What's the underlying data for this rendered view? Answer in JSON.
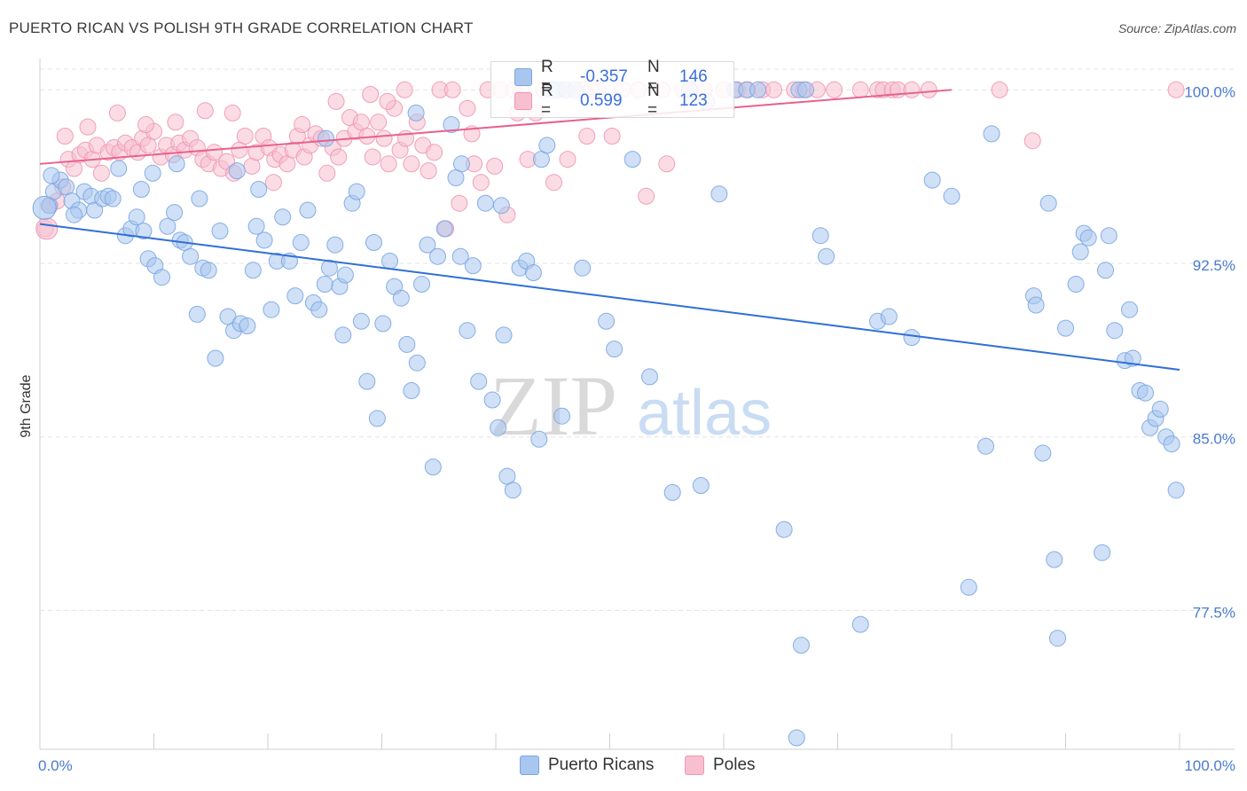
{
  "header": {
    "title": "PUERTO RICAN VS POLISH 9TH GRADE CORRELATION CHART",
    "source": "Source: ZipAtlas.com"
  },
  "watermark": {
    "zip": "ZIP",
    "atlas": "atlas"
  },
  "colors": {
    "blue_fill": "#a9c6ef",
    "blue_stroke": "#7aa6e3",
    "blue_line": "#2f6fd6",
    "pink_fill": "#f7bfd0",
    "pink_stroke": "#f096b3",
    "pink_line": "#e8618d",
    "tick_text": "#4a7bd0",
    "grid": "#e3e3e3"
  },
  "legend": {
    "rows": [
      {
        "series": "Puerto Ricans",
        "r_label": "R =",
        "r_value": "-0.357",
        "n_label": "N =",
        "n_value": "146"
      },
      {
        "series": "Poles",
        "r_label": "R =",
        "r_value": "0.599",
        "n_label": "N =",
        "n_value": "123"
      }
    ]
  },
  "bottom_legend": [
    {
      "label": "Puerto Ricans"
    },
    {
      "label": "Poles"
    }
  ],
  "chart_data": {
    "type": "scatter",
    "title": "PUERTO RICAN VS POLISH 9TH GRADE CORRELATION CHART",
    "xlabel": "",
    "ylabel": "9th Grade",
    "xlim": [
      0,
      100
    ],
    "ylim": [
      71.5,
      101.2
    ],
    "x_tick_labels": [
      "0.0%",
      "100.0%"
    ],
    "y_ticks": [
      {
        "value": 100.0,
        "label": "100.0%"
      },
      {
        "value": 92.5,
        "label": "92.5%"
      },
      {
        "value": 85.0,
        "label": "85.0%"
      },
      {
        "value": 77.5,
        "label": "77.5%"
      }
    ],
    "grid": true,
    "series": [
      {
        "name": "Puerto Ricans",
        "r": -0.357,
        "n": 146,
        "trend": {
          "x": [
            0,
            100
          ],
          "y": [
            94.2,
            87.9
          ]
        },
        "points": [
          [
            0.8,
            95.0
          ],
          [
            1.2,
            95.6
          ],
          [
            1.8,
            96.1
          ],
          [
            2.3,
            95.8
          ],
          [
            2.8,
            95.2
          ],
          [
            3.4,
            94.8
          ],
          [
            3.9,
            95.6
          ],
          [
            4.5,
            95.4
          ],
          [
            4.8,
            94.8
          ],
          [
            5.5,
            95.3
          ],
          [
            6.0,
            95.4
          ],
          [
            6.4,
            95.3
          ],
          [
            7.5,
            93.7
          ],
          [
            8.0,
            94.0
          ],
          [
            8.5,
            94.5
          ],
          [
            9.1,
            93.9
          ],
          [
            9.5,
            92.7
          ],
          [
            10.1,
            92.4
          ],
          [
            10.7,
            91.9
          ],
          [
            11.2,
            94.1
          ],
          [
            11.8,
            94.7
          ],
          [
            12.3,
            93.5
          ],
          [
            12.7,
            93.4
          ],
          [
            13.2,
            92.8
          ],
          [
            13.8,
            90.3
          ],
          [
            14.3,
            92.3
          ],
          [
            14.8,
            92.2
          ],
          [
            15.4,
            88.4
          ],
          [
            15.8,
            93.9
          ],
          [
            16.5,
            90.2
          ],
          [
            17.0,
            89.6
          ],
          [
            17.6,
            89.9
          ],
          [
            18.2,
            89.8
          ],
          [
            18.7,
            92.2
          ],
          [
            19.2,
            95.7
          ],
          [
            19.7,
            93.5
          ],
          [
            20.3,
            90.5
          ],
          [
            20.8,
            92.6
          ],
          [
            21.3,
            94.5
          ],
          [
            21.9,
            92.6
          ],
          [
            22.4,
            91.1
          ],
          [
            22.9,
            93.4
          ],
          [
            23.5,
            94.8
          ],
          [
            24.0,
            90.8
          ],
          [
            24.5,
            90.5
          ],
          [
            25.0,
            91.6
          ],
          [
            25.4,
            92.3
          ],
          [
            25.9,
            93.3
          ],
          [
            26.3,
            91.5
          ],
          [
            26.8,
            92.0
          ],
          [
            27.4,
            95.1
          ],
          [
            27.8,
            95.6
          ],
          [
            28.2,
            90.0
          ],
          [
            28.7,
            87.4
          ],
          [
            29.3,
            93.4
          ],
          [
            29.6,
            85.8
          ],
          [
            30.1,
            89.9
          ],
          [
            30.7,
            92.6
          ],
          [
            31.1,
            91.5
          ],
          [
            31.7,
            91.0
          ],
          [
            32.2,
            89.0
          ],
          [
            32.6,
            87.0
          ],
          [
            33.1,
            88.2
          ],
          [
            33.5,
            91.6
          ],
          [
            34.0,
            93.3
          ],
          [
            34.5,
            83.7
          ],
          [
            34.9,
            92.8
          ],
          [
            35.5,
            94.0
          ],
          [
            36.1,
            98.5
          ],
          [
            36.9,
            92.8
          ],
          [
            37.5,
            89.6
          ],
          [
            38.0,
            92.4
          ],
          [
            38.5,
            87.4
          ],
          [
            39.1,
            95.1
          ],
          [
            39.7,
            86.6
          ],
          [
            40.2,
            85.4
          ],
          [
            40.7,
            89.4
          ],
          [
            41.0,
            83.3
          ],
          [
            41.5,
            82.7
          ],
          [
            42.1,
            92.3
          ],
          [
            42.7,
            92.6
          ],
          [
            43.3,
            92.1
          ],
          [
            44.0,
            97.0
          ],
          [
            44.5,
            97.6
          ],
          [
            45.0,
            100.0
          ],
          [
            45.4,
            100.0
          ],
          [
            46.2,
            100.0
          ],
          [
            47.0,
            100.0
          ],
          [
            49.7,
            90.0
          ],
          [
            55.5,
            82.6
          ],
          [
            58.0,
            82.9
          ],
          [
            59.6,
            95.5
          ],
          [
            61.0,
            100.0
          ],
          [
            62.0,
            100.0
          ],
          [
            65.3,
            81.0
          ],
          [
            66.6,
            100.0
          ],
          [
            66.8,
            76.0
          ],
          [
            67.2,
            100.0
          ],
          [
            68.5,
            93.7
          ],
          [
            69.0,
            92.8
          ],
          [
            72.0,
            76.9
          ],
          [
            73.5,
            90.0
          ],
          [
            74.5,
            90.2
          ],
          [
            76.5,
            89.3
          ],
          [
            78.3,
            96.1
          ],
          [
            80.0,
            95.4
          ],
          [
            81.5,
            78.5
          ],
          [
            83.0,
            84.6
          ],
          [
            83.5,
            98.1
          ],
          [
            87.2,
            91.1
          ],
          [
            87.4,
            90.7
          ],
          [
            88.0,
            84.3
          ],
          [
            88.5,
            95.1
          ],
          [
            89.0,
            79.7
          ],
          [
            89.3,
            76.3
          ],
          [
            90.0,
            89.7
          ],
          [
            90.9,
            91.6
          ],
          [
            91.3,
            93.0
          ],
          [
            91.6,
            93.8
          ],
          [
            92.0,
            93.6
          ],
          [
            93.2,
            80.0
          ],
          [
            93.5,
            92.2
          ],
          [
            93.8,
            93.7
          ],
          [
            94.3,
            89.6
          ],
          [
            95.2,
            88.3
          ],
          [
            95.6,
            90.5
          ],
          [
            95.9,
            88.4
          ],
          [
            96.5,
            87.0
          ],
          [
            97.0,
            86.9
          ],
          [
            97.4,
            85.4
          ],
          [
            97.9,
            85.8
          ],
          [
            98.3,
            86.2
          ],
          [
            98.8,
            85.0
          ],
          [
            99.3,
            84.7
          ],
          [
            99.7,
            82.7
          ],
          [
            66.4,
            72.0
          ],
          [
            52.0,
            97.0
          ],
          [
            58.5,
            99.5
          ],
          [
            40.5,
            95.0
          ],
          [
            37.0,
            96.8
          ],
          [
            33.0,
            99.0
          ],
          [
            36.5,
            96.2
          ],
          [
            63.0,
            100.0
          ],
          [
            57.0,
            100.0
          ],
          [
            47.6,
            92.3
          ],
          [
            50.4,
            88.8
          ],
          [
            53.5,
            87.6
          ],
          [
            45.8,
            85.9
          ],
          [
            43.8,
            84.9
          ],
          [
            14.0,
            95.3
          ],
          [
            17.3,
            96.5
          ],
          [
            25.1,
            97.9
          ],
          [
            9.9,
            96.4
          ],
          [
            1.0,
            96.3
          ],
          [
            3.0,
            94.6
          ],
          [
            6.9,
            96.6
          ],
          [
            8.9,
            95.7
          ],
          [
            12.0,
            96.8
          ],
          [
            19.0,
            94.1
          ],
          [
            26.6,
            89.4
          ]
        ]
      },
      {
        "name": "Poles",
        "r": 0.599,
        "n": 123,
        "trend": {
          "x": [
            0,
            80
          ],
          "y": [
            96.8,
            100.0
          ]
        },
        "points": [
          [
            0.5,
            94.0
          ],
          [
            0.9,
            95.0
          ],
          [
            1.5,
            95.2
          ],
          [
            2.0,
            95.8
          ],
          [
            2.5,
            97.0
          ],
          [
            3.0,
            96.6
          ],
          [
            3.5,
            97.2
          ],
          [
            4.0,
            97.4
          ],
          [
            4.6,
            97.0
          ],
          [
            5.0,
            97.6
          ],
          [
            5.4,
            96.4
          ],
          [
            6.0,
            97.3
          ],
          [
            6.5,
            97.5
          ],
          [
            7.0,
            97.3
          ],
          [
            7.5,
            97.7
          ],
          [
            8.1,
            97.5
          ],
          [
            8.6,
            97.3
          ],
          [
            9.0,
            97.9
          ],
          [
            9.5,
            97.6
          ],
          [
            10.0,
            98.2
          ],
          [
            10.6,
            97.1
          ],
          [
            11.1,
            97.6
          ],
          [
            11.7,
            97.2
          ],
          [
            12.2,
            97.7
          ],
          [
            12.7,
            97.4
          ],
          [
            13.2,
            97.9
          ],
          [
            13.8,
            97.5
          ],
          [
            14.3,
            97.0
          ],
          [
            14.8,
            96.8
          ],
          [
            15.3,
            97.3
          ],
          [
            15.9,
            96.6
          ],
          [
            16.4,
            96.9
          ],
          [
            17.0,
            96.4
          ],
          [
            17.5,
            97.4
          ],
          [
            18.0,
            98.0
          ],
          [
            18.6,
            96.7
          ],
          [
            19.0,
            97.3
          ],
          [
            19.6,
            98.0
          ],
          [
            20.1,
            97.5
          ],
          [
            20.6,
            97.0
          ],
          [
            21.1,
            97.2
          ],
          [
            21.7,
            96.8
          ],
          [
            22.2,
            97.4
          ],
          [
            22.6,
            98.0
          ],
          [
            23.2,
            97.1
          ],
          [
            23.7,
            97.6
          ],
          [
            24.2,
            98.1
          ],
          [
            24.7,
            97.9
          ],
          [
            25.2,
            96.4
          ],
          [
            25.7,
            97.5
          ],
          [
            26.2,
            97.1
          ],
          [
            26.7,
            97.9
          ],
          [
            27.2,
            98.8
          ],
          [
            27.7,
            98.2
          ],
          [
            28.2,
            98.6
          ],
          [
            28.7,
            98.0
          ],
          [
            29.2,
            97.1
          ],
          [
            29.7,
            98.6
          ],
          [
            30.2,
            97.9
          ],
          [
            30.6,
            96.8
          ],
          [
            31.1,
            99.2
          ],
          [
            31.6,
            97.4
          ],
          [
            32.1,
            97.9
          ],
          [
            32.6,
            96.8
          ],
          [
            33.1,
            98.6
          ],
          [
            33.6,
            97.6
          ],
          [
            34.1,
            96.5
          ],
          [
            34.6,
            97.3
          ],
          [
            35.1,
            100.0
          ],
          [
            35.6,
            94.0
          ],
          [
            36.2,
            100.0
          ],
          [
            36.8,
            95.1
          ],
          [
            37.5,
            99.2
          ],
          [
            38.1,
            96.8
          ],
          [
            38.7,
            96.0
          ],
          [
            39.3,
            100.0
          ],
          [
            39.9,
            96.7
          ],
          [
            40.4,
            100.0
          ],
          [
            41.0,
            94.6
          ],
          [
            41.6,
            100.0
          ],
          [
            42.2,
            100.0
          ],
          [
            44.2,
            100.0
          ],
          [
            45.1,
            96.0
          ],
          [
            46.0,
            100.0
          ],
          [
            47.5,
            100.0
          ],
          [
            48.4,
            100.0
          ],
          [
            49.0,
            100.0
          ],
          [
            50.2,
            98.0
          ],
          [
            51.1,
            100.0
          ],
          [
            52.5,
            100.0
          ],
          [
            53.2,
            95.4
          ],
          [
            54.6,
            100.0
          ],
          [
            55.0,
            96.8
          ],
          [
            56.4,
            100.0
          ],
          [
            57.1,
            100.0
          ],
          [
            58.3,
            100.0
          ],
          [
            60.0,
            100.0
          ],
          [
            61.2,
            100.0
          ],
          [
            62.1,
            100.0
          ],
          [
            63.4,
            100.0
          ],
          [
            64.4,
            100.0
          ],
          [
            66.2,
            100.0
          ],
          [
            67.0,
            100.0
          ],
          [
            68.2,
            100.0
          ],
          [
            69.7,
            100.0
          ],
          [
            72.0,
            100.0
          ],
          [
            73.5,
            100.0
          ],
          [
            74.0,
            100.0
          ],
          [
            74.8,
            100.0
          ],
          [
            75.3,
            100.0
          ],
          [
            76.5,
            100.0
          ],
          [
            78.0,
            100.0
          ],
          [
            84.2,
            100.0
          ],
          [
            87.1,
            97.8
          ],
          [
            99.7,
            100.0
          ],
          [
            32.0,
            100.0
          ],
          [
            30.5,
            99.5
          ],
          [
            42.8,
            97.0
          ],
          [
            46.3,
            97.0
          ],
          [
            43.5,
            99.0
          ],
          [
            37.9,
            98.1
          ],
          [
            29.0,
            99.8
          ],
          [
            26.0,
            99.5
          ],
          [
            23.0,
            98.5
          ],
          [
            20.5,
            96.0
          ],
          [
            16.9,
            99.0
          ],
          [
            14.5,
            99.1
          ],
          [
            11.9,
            98.6
          ],
          [
            9.3,
            98.5
          ],
          [
            6.8,
            99.0
          ],
          [
            4.2,
            98.4
          ],
          [
            2.2,
            98.0
          ],
          [
            41.9,
            99.0
          ],
          [
            48.0,
            98.0
          ]
        ]
      }
    ]
  }
}
